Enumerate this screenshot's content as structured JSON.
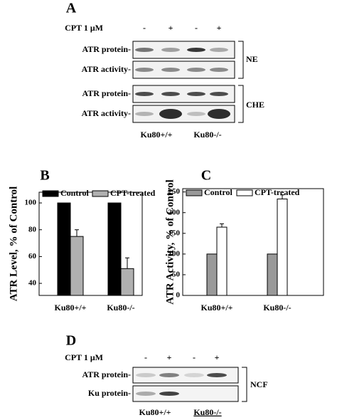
{
  "panel_a": {
    "label": "A",
    "treatment": "CPT 1 μM",
    "conditions": [
      "-",
      "+",
      "-",
      "+"
    ],
    "rows": [
      "ATR protein-",
      "ATR activity-",
      "ATR protein-",
      "ATR activity-"
    ],
    "fractions": [
      "NE",
      "CHE"
    ],
    "cell_lines": [
      "Ku80+/+",
      "Ku80-/-"
    ]
  },
  "chart_data": [
    {
      "type": "bar",
      "panel_label": "B",
      "ylabel": "ATR Level, % of Control",
      "categories": [
        "Ku80+/+",
        "Ku80-/-"
      ],
      "series": [
        {
          "name": "Control",
          "color": "#000000",
          "values": [
            100,
            100
          ]
        },
        {
          "name": "CPT-treated",
          "color": "#b0b0b0",
          "values": [
            75,
            51
          ],
          "errors": [
            5,
            8
          ]
        }
      ],
      "ylim": [
        31,
        108
      ],
      "yticks": [
        40,
        60,
        80,
        100
      ]
    },
    {
      "type": "bar",
      "panel_label": "C",
      "ylabel": "ATR Activity, % of Control",
      "categories": [
        "Ku80+/+",
        "Ku80-/-"
      ],
      "series": [
        {
          "name": "Control",
          "color": "#999999",
          "values": [
            100,
            100
          ]
        },
        {
          "name": "CPT-treated",
          "color": "#ffffff",
          "values": [
            165,
            233
          ],
          "errors": [
            8,
            10
          ]
        }
      ],
      "ylim": [
        0,
        258
      ],
      "yticks": [
        0,
        50,
        100,
        150,
        200,
        250
      ]
    }
  ],
  "panel_d": {
    "label": "D",
    "treatment": "CPT 1 μM",
    "conditions": [
      "-",
      "+",
      "-",
      "+"
    ],
    "rows": [
      "ATR protein-",
      "Ku protein-"
    ],
    "fraction": "NCF",
    "cell_lines": [
      "Ku80+/+",
      "Ku80-/-"
    ]
  }
}
